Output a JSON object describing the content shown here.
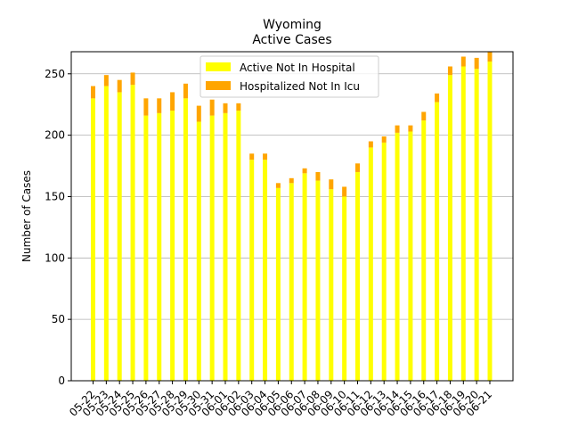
{
  "chart_data": {
    "type": "bar",
    "stacked": true,
    "title": "Wyoming",
    "subtitle": "Active Cases",
    "xlabel": "",
    "ylabel": "Number of Cases",
    "ylim": [
      0,
      268
    ],
    "yticks": [
      0,
      50,
      100,
      150,
      200,
      250
    ],
    "grid": "horizontal",
    "legend_position": "top-center",
    "categories": [
      "05-22",
      "05-23",
      "05-24",
      "05-25",
      "05-26",
      "05-27",
      "05-28",
      "05-29",
      "05-30",
      "05-31",
      "06-01",
      "06-02",
      "06-03",
      "06-04",
      "06-05",
      "06-06",
      "06-07",
      "06-08",
      "06-09",
      "06-10",
      "06-11",
      "06-12",
      "06-13",
      "06-14",
      "06-15",
      "06-16",
      "06-17",
      "06-18",
      "06-19",
      "06-20",
      "06-21"
    ],
    "series": [
      {
        "name": "Active Not In Hospital",
        "color": "#ffff00",
        "values": [
          230,
          240,
          235,
          241,
          216,
          218,
          220,
          230,
          211,
          216,
          218,
          220,
          180,
          180,
          157,
          161,
          169,
          163,
          156,
          150,
          170,
          190,
          194,
          202,
          203,
          212,
          227,
          249,
          256,
          254,
          260
        ]
      },
      {
        "name": "Hospitalized Not In Icu",
        "color": "#ffa500",
        "values": [
          10,
          9,
          10,
          10,
          14,
          12,
          15,
          12,
          13,
          13,
          8,
          6,
          5,
          5,
          4,
          4,
          4,
          7,
          8,
          8,
          7,
          5,
          5,
          6,
          5,
          7,
          7,
          7,
          8,
          9,
          8
        ]
      }
    ]
  }
}
